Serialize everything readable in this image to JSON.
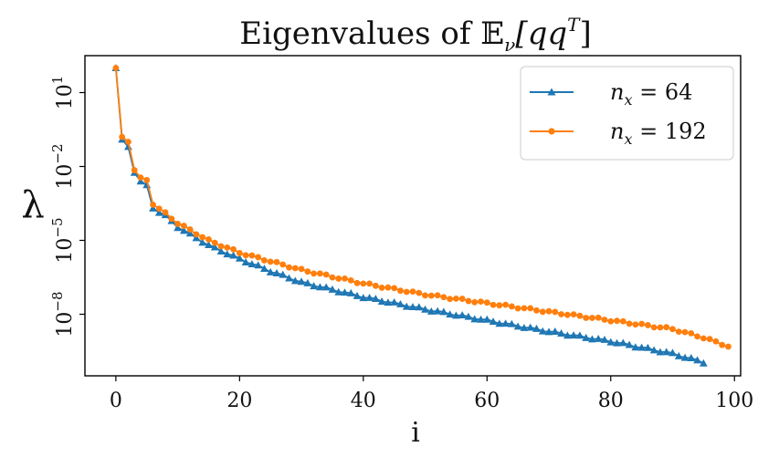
{
  "chart_data": {
    "type": "line",
    "title": "Eigenvalues of 𝔼ν[qqT]",
    "title_parts": {
      "base": "Eigenvalues of ",
      "E": "𝔼",
      "sub": "ν",
      "body": "[qq",
      "sup": "T",
      "close": "]"
    },
    "xlabel": "i",
    "ylabel": "λ",
    "yscale": "log",
    "xlim": [
      -5,
      101
    ],
    "ylim_log10": [
      -10.5,
      2.5
    ],
    "xticks": [
      0,
      20,
      40,
      60,
      80,
      100
    ],
    "xtick_labels": [
      "0",
      "20",
      "40",
      "60",
      "80",
      "100"
    ],
    "yticks_log10": [
      1,
      -2,
      -5,
      -8
    ],
    "ytick_labels": [
      {
        "base": "10",
        "exp": "1"
      },
      {
        "base": "10",
        "exp": "−2"
      },
      {
        "base": "10",
        "exp": "−5"
      },
      {
        "base": "10",
        "exp": "−8"
      }
    ],
    "legend_position": "upper-right",
    "series": [
      {
        "name": "n_x = 64",
        "label": {
          "var": "n",
          "sub": "x",
          "rest": " = 64"
        },
        "color": "#1f77b4",
        "marker": "triangle",
        "count": 96,
        "log10_anchors": [
          [
            0,
            2.0
          ],
          [
            1,
            -0.9
          ],
          [
            2,
            -1.2
          ],
          [
            3,
            -2.25
          ],
          [
            4,
            -2.6
          ],
          [
            5,
            -2.75
          ],
          [
            6,
            -3.7
          ],
          [
            8,
            -4.0
          ],
          [
            10,
            -4.45
          ],
          [
            15,
            -5.2
          ],
          [
            20,
            -5.75
          ],
          [
            25,
            -6.25
          ],
          [
            30,
            -6.7
          ],
          [
            40,
            -7.3
          ],
          [
            50,
            -7.8
          ],
          [
            60,
            -8.25
          ],
          [
            70,
            -8.7
          ],
          [
            80,
            -9.1
          ],
          [
            90,
            -9.6
          ],
          [
            95,
            -9.95
          ]
        ]
      },
      {
        "name": "n_x = 192",
        "label": {
          "var": "n",
          "sub": "x",
          "rest": " = 192"
        },
        "color": "#ff7f0e",
        "marker": "circle",
        "count": 100,
        "log10_anchors": [
          [
            0,
            2.0
          ],
          [
            1,
            -0.8
          ],
          [
            2,
            -1.0
          ],
          [
            3,
            -2.15
          ],
          [
            4,
            -2.45
          ],
          [
            5,
            -2.55
          ],
          [
            6,
            -3.55
          ],
          [
            8,
            -3.9
          ],
          [
            10,
            -4.3
          ],
          [
            15,
            -5.0
          ],
          [
            20,
            -5.5
          ],
          [
            25,
            -5.85
          ],
          [
            30,
            -6.2
          ],
          [
            40,
            -6.75
          ],
          [
            50,
            -7.2
          ],
          [
            60,
            -7.55
          ],
          [
            70,
            -7.9
          ],
          [
            80,
            -8.25
          ],
          [
            90,
            -8.6
          ],
          [
            95,
            -8.95
          ],
          [
            99,
            -9.3
          ]
        ]
      }
    ]
  }
}
